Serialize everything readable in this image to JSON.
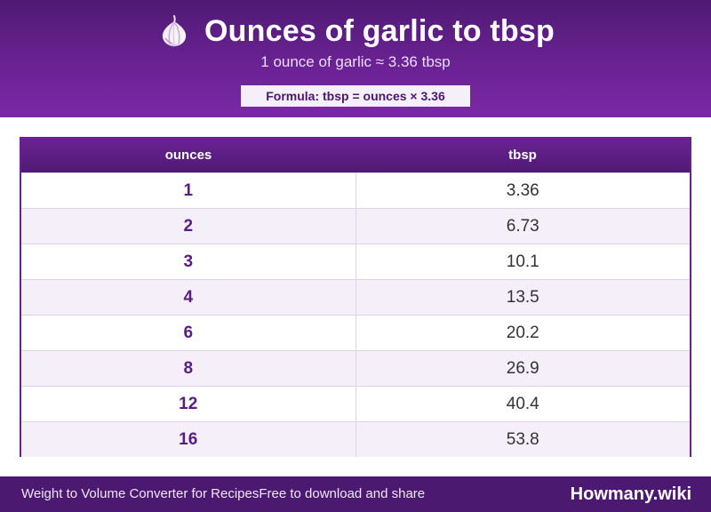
{
  "header": {
    "icon": "garlic-icon",
    "title": "Ounces of garlic to tbsp",
    "subtitle": "1 ounce of garlic ≈ 3.36 tbsp",
    "formula": "Formula: tbsp = ounces × 3.36"
  },
  "table": {
    "columns": [
      "ounces",
      "tbsp"
    ],
    "rows": [
      {
        "ounces": "1",
        "tbsp": "3.36"
      },
      {
        "ounces": "2",
        "tbsp": "6.73"
      },
      {
        "ounces": "3",
        "tbsp": "10.1"
      },
      {
        "ounces": "4",
        "tbsp": "13.5"
      },
      {
        "ounces": "6",
        "tbsp": "20.2"
      },
      {
        "ounces": "8",
        "tbsp": "26.9"
      },
      {
        "ounces": "12",
        "tbsp": "40.4"
      },
      {
        "ounces": "16",
        "tbsp": "53.8"
      }
    ]
  },
  "footer": {
    "left_text": "Weight to Volume Converter for RecipesFree to download and share",
    "brand": "Howmany.wiki"
  },
  "colors": {
    "header_purple": "#6a2293",
    "dark_purple": "#4b1a70",
    "alt_row": "#f4eff8",
    "value_purple": "#5a1b82"
  }
}
